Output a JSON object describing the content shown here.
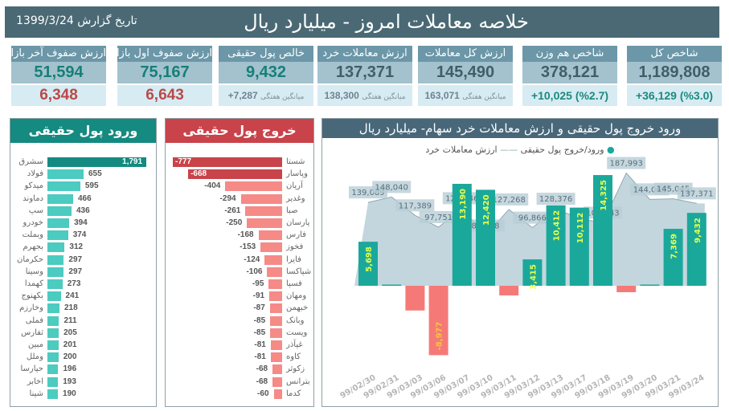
{
  "header": {
    "title": "خلاصه معاملات امروز - میلیارد ریال",
    "date": "تاریخ گزارش 1399/3/24"
  },
  "cards": [
    {
      "title": "شاخص کل",
      "value": "1,189,808",
      "sub": "+36,129 (%3.0)",
      "style": "index"
    },
    {
      "title": "شاخص هم وزن",
      "value": "378,121",
      "sub": "+10,025 (%2.7)",
      "style": "index"
    },
    {
      "title": "ارزش کل معاملات",
      "value": "145,490",
      "sub_label": "میانگین هفتگی",
      "sub": "163,071",
      "style": "avg"
    },
    {
      "title": "ارزش معاملات خرد",
      "value": "137,371",
      "sub_label": "میانگین هفتگی",
      "sub": "138,300",
      "style": "avg"
    },
    {
      "title": "خالص پول حقیقی",
      "value": "9,432",
      "sub_label": "میانگین هفتگی",
      "sub": "+7,287",
      "style": "money-avg"
    },
    {
      "title": "ارزش صفوف اول بازار",
      "value": "75,167",
      "sub": "6,643",
      "style": "money"
    },
    {
      "title": "ارزش صفوف آخر بازار",
      "value": "51,594",
      "sub": "6,348",
      "style": "money"
    }
  ],
  "inflow": {
    "title": "ورود پول حقیقی",
    "color": "#4ccbc0",
    "top_color": "#148a80",
    "items": [
      [
        "سشرق",
        1791,
        "1,791"
      ],
      [
        "فولاد",
        655,
        "655"
      ],
      [
        "میدکو",
        595,
        "595"
      ],
      [
        "دماوند",
        466,
        "466"
      ],
      [
        "سپ",
        436,
        "436"
      ],
      [
        "خودرو",
        394,
        "394"
      ],
      [
        "وبملت",
        374,
        "374"
      ],
      [
        "بجهرم",
        312,
        "312"
      ],
      [
        "حکرمان",
        297,
        "297"
      ],
      [
        "وسینا",
        297,
        "297"
      ],
      [
        "کهمدا",
        273,
        "273"
      ],
      [
        "بکهنوج",
        241,
        "241"
      ],
      [
        "وخارزم",
        218,
        "218"
      ],
      [
        "فملی",
        211,
        "211"
      ],
      [
        "ثفارس",
        205,
        "205"
      ],
      [
        "مبین",
        201,
        "201"
      ],
      [
        "وملل",
        200,
        "200"
      ],
      [
        "حپارسا",
        196,
        "196"
      ],
      [
        "اخابر",
        193,
        "193"
      ],
      [
        "شپنا",
        190,
        "190"
      ]
    ]
  },
  "outflow": {
    "title": "خروج پول حقیقی",
    "color": "#f58a87",
    "top_color": "#c9434a",
    "items": [
      [
        "شستا",
        -777,
        "-777"
      ],
      [
        "وپاسار",
        -668,
        "-668"
      ],
      [
        "آریان",
        -404,
        "-404"
      ],
      [
        "وغدیر",
        -294,
        "-294"
      ],
      [
        "صبا",
        -261,
        "-261"
      ],
      [
        "پارسان",
        -250,
        "-250"
      ],
      [
        "فارس",
        -168,
        "-168"
      ],
      [
        "فخوز",
        -153,
        "-153"
      ],
      [
        "فایرا",
        -124,
        "-124"
      ],
      [
        "شپاکسا",
        -106,
        "-106"
      ],
      [
        "فسپا",
        -95,
        "-95"
      ],
      [
        "ومهان",
        -91,
        "-91"
      ],
      [
        "خبهمن",
        -87,
        "-87"
      ],
      [
        "وبانک",
        -85,
        "-85"
      ],
      [
        "ویست",
        -85,
        "-85"
      ],
      [
        "غپآذر",
        -81,
        "-81"
      ],
      [
        "کاوه",
        -81,
        "-81"
      ],
      [
        "زکوثر",
        -68,
        "-68"
      ],
      [
        "بترانس",
        -68,
        "-68"
      ],
      [
        "کدما",
        -60,
        "-60"
      ]
    ]
  },
  "chart_data": {
    "type": "bar+area",
    "title": "ورود خروج پول حقیقی و ارزش معاملات خرد سهام- میلیارد ریال",
    "legend": {
      "flow": "ورود/خروج پول حقیقی",
      "retail": "ارزش معاملات خرد",
      "placement": "top"
    },
    "categories": [
      "99/02/30",
      "99/02/31",
      "99/03/03",
      "99/03/06",
      "99/03/07",
      "99/03/10",
      "99/03/11",
      "99/03/12",
      "99/03/13",
      "99/03/17",
      "99/03/18",
      "99/03/19",
      "99/03/20",
      "99/03/21",
      "99/03/24"
    ],
    "series": [
      {
        "name": "ورود/خروج پول حقیقی",
        "type": "bar",
        "values": [
          5698,
          100,
          -3200,
          -8977,
          13190,
          12420,
          -1250,
          3415,
          10412,
          10112,
          14325,
          -830,
          100,
          7369,
          9432
        ],
        "labels": [
          "5,698",
          "",
          "",
          "-8,977",
          "13,190",
          "12,420",
          "",
          "3,415",
          "10,412",
          "10,112",
          "14,325",
          "",
          "",
          "7,369",
          "9,432"
        ]
      },
      {
        "name": "ارزش معاملات خرد",
        "type": "area",
        "values": [
          139089,
          148040,
          117389,
          97751,
          129346,
          83758,
          127268,
          96866,
          128376,
          112000,
          105143,
          187993,
          144062,
          145045,
          137371
        ],
        "labels": [
          "139,089",
          "148,040",
          "117,389",
          "97,751",
          "129,346",
          "83,758",
          "127,268",
          "96,866",
          "128,376",
          "",
          "105,143",
          "187,993",
          "144,062",
          "145,045",
          "137,371"
        ]
      }
    ],
    "colors": {
      "pos": "#1aa89b",
      "neg": "#f57a77",
      "area": "#c3d6de",
      "label_pos": "#e6ff4d",
      "label_neg": "#f5c542"
    }
  }
}
